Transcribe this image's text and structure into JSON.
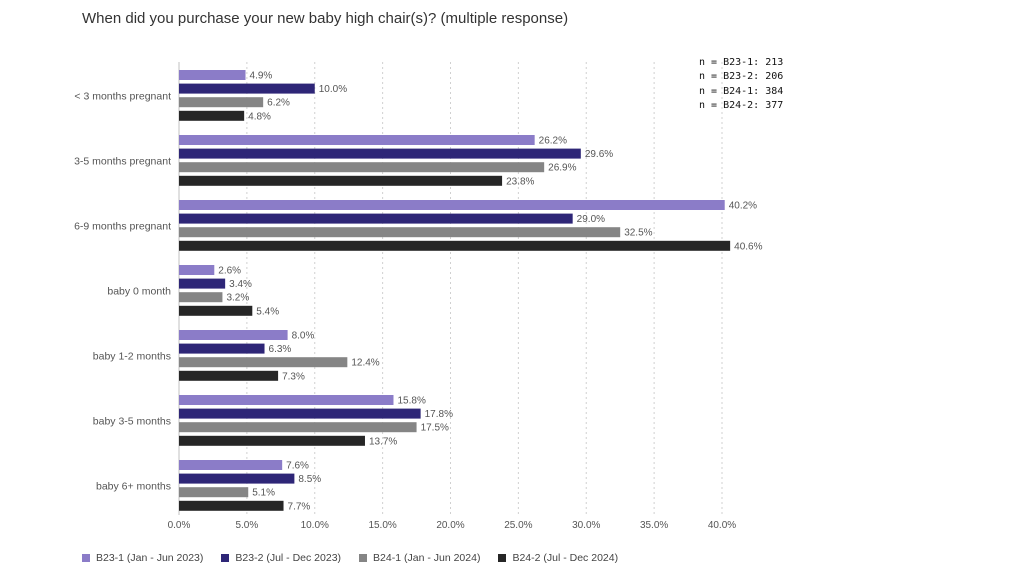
{
  "notes": [
    "n = B23-1: 213",
    "n = B23-2: 206",
    "n = B24-1: 384",
    "n = B24-2: 377"
  ],
  "chart_data": {
    "type": "bar",
    "orientation": "horizontal",
    "title": "When did you purchase your new baby high chair(s)? (multiple response)",
    "categories": [
      "< 3 months pregnant",
      "3-5 months pregnant",
      "6-9 months pregnant",
      "baby 0 month",
      "baby 1-2 months",
      "baby 3-5 months",
      "baby 6+ months"
    ],
    "series": [
      {
        "name": "B23-1 (Jan - Jun 2023)",
        "color": "#8b7cc8",
        "values": [
          4.9,
          26.2,
          40.2,
          2.6,
          8.0,
          15.8,
          7.6
        ]
      },
      {
        "name": "B23-2 (Jul - Dec 2023)",
        "color": "#2e2677",
        "values": [
          10.0,
          29.6,
          29.0,
          3.4,
          6.3,
          17.8,
          8.5
        ]
      },
      {
        "name": "B24-1 (Jan - Jun 2024)",
        "color": "#858585",
        "values": [
          6.2,
          26.9,
          32.5,
          3.2,
          12.4,
          17.5,
          5.1
        ]
      },
      {
        "name": "B24-2 (Jul - Dec 2024)",
        "color": "#262626",
        "values": [
          4.8,
          23.8,
          40.6,
          5.4,
          7.3,
          13.7,
          7.7
        ]
      }
    ],
    "xlim": [
      0,
      40
    ],
    "xticks": [
      "0.0%",
      "5.0%",
      "10.0%",
      "15.0%",
      "20.0%",
      "25.0%",
      "30.0%",
      "35.0%",
      "40.0%"
    ],
    "grid": "vertical dotted",
    "legend": "bottom"
  }
}
